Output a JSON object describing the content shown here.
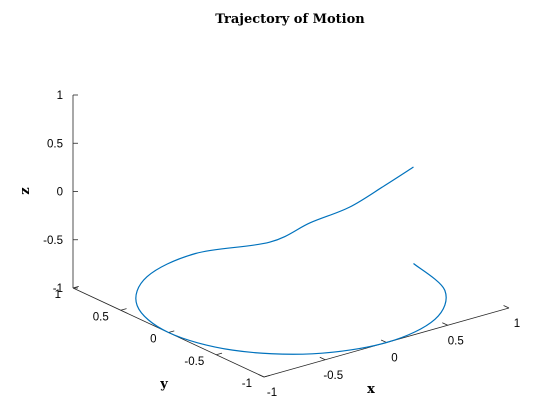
{
  "chart_data": {
    "type": "line3d",
    "title": "Trajectory of Motion",
    "xlabel": "x",
    "ylabel": "y",
    "zlabel": "z",
    "xlim": [
      -1,
      1
    ],
    "ylim": [
      -1,
      1
    ],
    "zlim": [
      -1,
      1
    ],
    "xticks": [
      -1,
      -0.5,
      0,
      0.5,
      1
    ],
    "yticks": [
      -1,
      -0.5,
      0,
      0.5,
      1
    ],
    "zticks": [
      -1,
      -0.5,
      0,
      0.5,
      1
    ],
    "xtick_labels": [
      "-1",
      "-0.5",
      "0",
      "0.5",
      "1"
    ],
    "ytick_labels": [
      "-1",
      "-0.5",
      "0",
      "0.5",
      "1"
    ],
    "ztick_labels": [
      "-1",
      "-0.5",
      "0",
      "0.5",
      "1"
    ],
    "grid": false,
    "line_color": "#0072BD",
    "series": [
      {
        "description": "helical arc, radius 1 about z-axis",
        "x": [
          1.0,
          0.866,
          0.5,
          0.0,
          -0.5,
          -0.866,
          -1.0,
          -0.866,
          -0.5,
          0.0,
          0.5,
          0.707,
          0.866,
          0.966,
          1.0
        ],
        "y": [
          0.0,
          -0.5,
          -0.866,
          -1.0,
          -0.866,
          -0.5,
          0.0,
          0.5,
          0.866,
          1.0,
          0.866,
          0.707,
          0.5,
          0.259,
          0.0
        ],
        "z": [
          -1.0,
          -1.0,
          -1.0,
          -1.0,
          -1.0,
          -1.0,
          -1.0,
          -1.0,
          -1.0,
          -1.0,
          -1.0,
          -0.8,
          -0.6,
          -0.3,
          0.0
        ]
      }
    ]
  }
}
